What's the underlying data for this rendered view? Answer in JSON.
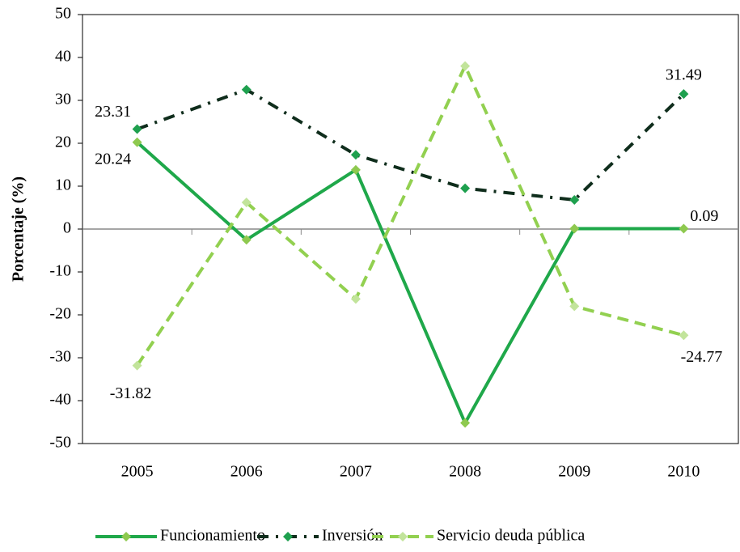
{
  "chart_data": {
    "type": "line",
    "y_label": "Porcentaje (%)",
    "categories": [
      "2005",
      "2006",
      "2007",
      "2008",
      "2009",
      "2010"
    ],
    "ylim": [
      -50,
      50
    ],
    "yticks": [
      -50,
      -40,
      -30,
      -20,
      -10,
      0,
      10,
      20,
      30,
      40,
      50
    ],
    "legend": "bottom",
    "series": [
      {
        "name": "Funcionamiento",
        "color": "#1fa84a",
        "marker_color": "#8ec94f",
        "line_style": "solid",
        "values": [
          20.24,
          -2.5,
          13.8,
          -45.2,
          0.1,
          0.09
        ],
        "value_labels": [
          "20.24",
          null,
          null,
          null,
          null,
          "0.09"
        ]
      },
      {
        "name": "Inversión",
        "color": "#0f2d1c",
        "marker_color": "#1ea04e",
        "line_style": "dashdot",
        "values": [
          23.31,
          32.5,
          17.3,
          9.5,
          6.8,
          31.49
        ],
        "value_labels": [
          "23.31",
          null,
          null,
          null,
          null,
          "31.49"
        ]
      },
      {
        "name": "Servicio deuda pública",
        "color": "#92d050",
        "marker_color": "#c2e49b",
        "line_style": "dashed",
        "values": [
          -31.82,
          6.2,
          -16.3,
          38.0,
          -18.0,
          -24.77
        ],
        "value_labels": [
          "-31.82",
          null,
          null,
          null,
          null,
          "-24.77"
        ]
      }
    ]
  }
}
